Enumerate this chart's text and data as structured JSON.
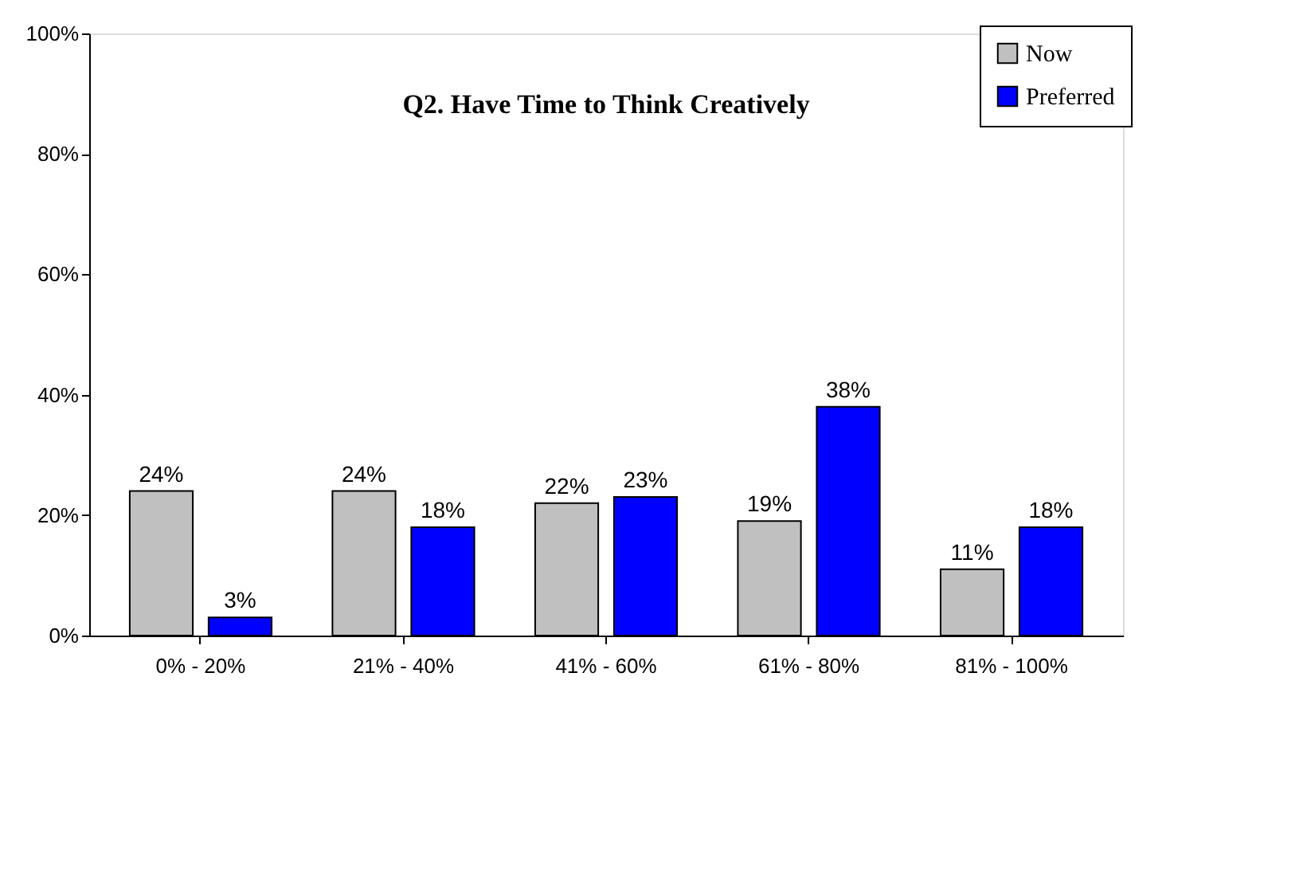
{
  "chart_data": {
    "type": "bar",
    "title": "Q2. Have Time to Think Creatively",
    "categories": [
      "0% - 20%",
      "21% - 40%",
      "41% - 60%",
      "61% - 80%",
      "81% - 100%"
    ],
    "series": [
      {
        "name": "Now",
        "color": "#c0c0c0",
        "values": [
          24,
          24,
          22,
          19,
          11
        ],
        "value_labels": [
          "24%",
          "24%",
          "22%",
          "19%",
          "11%"
        ]
      },
      {
        "name": "Preferred",
        "color": "#0000ff",
        "values": [
          3,
          18,
          23,
          38,
          18
        ],
        "value_labels": [
          "3%",
          "18%",
          "23%",
          "38%",
          "18%"
        ]
      }
    ],
    "ylim": [
      0,
      100
    ],
    "yticks": [
      {
        "value": 0,
        "label": "0%"
      },
      {
        "value": 20,
        "label": "20%"
      },
      {
        "value": 40,
        "label": "40%"
      },
      {
        "value": 60,
        "label": "60%"
      },
      {
        "value": 80,
        "label": "80%"
      },
      {
        "value": 100,
        "label": "100%"
      }
    ],
    "grid": false,
    "legend": "top right"
  }
}
